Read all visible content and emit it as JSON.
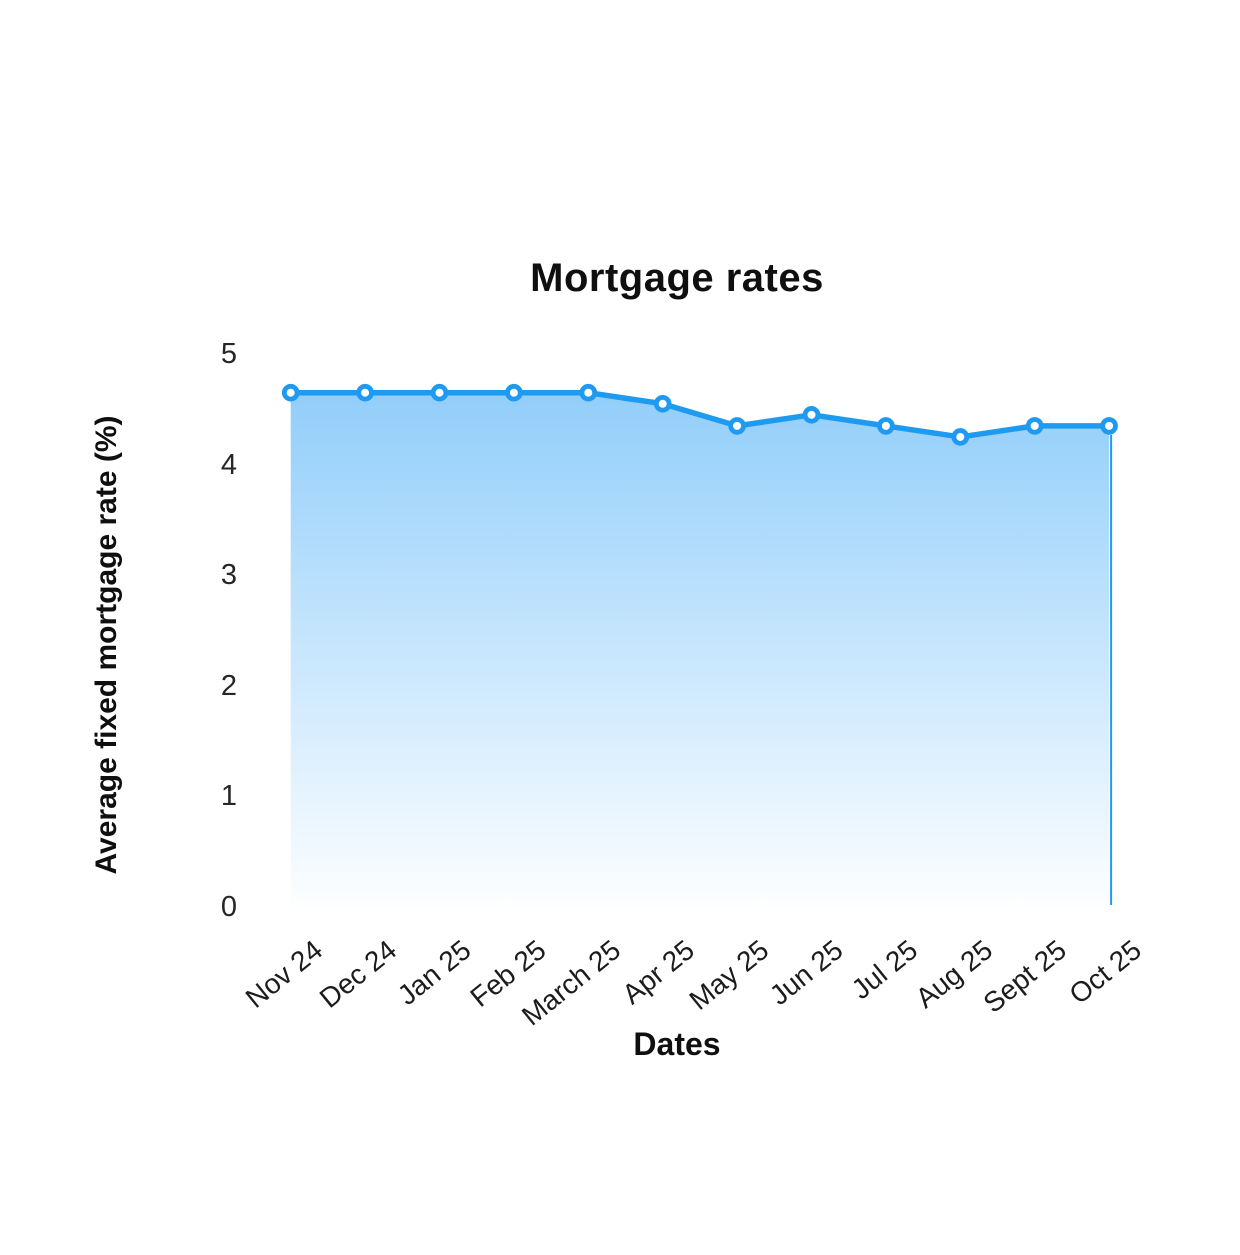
{
  "page": {
    "background": "#ffffff"
  },
  "chart_data": {
    "type": "area",
    "title": "Mortgage rates",
    "xlabel": "Dates",
    "ylabel": "Average fixed mortgage rate (%)",
    "categories": [
      "Nov 24",
      "Dec 24",
      "Jan 25",
      "Feb 25",
      "March 25",
      "Apr 25",
      "May 25",
      "Jun 25",
      "Jul 25",
      "Aug 25",
      "Sept 25",
      "Oct 25"
    ],
    "values": [
      4.65,
      4.65,
      4.65,
      4.65,
      4.65,
      4.55,
      4.35,
      4.45,
      4.35,
      4.25,
      4.35,
      4.35
    ],
    "ylim": [
      0,
      5
    ],
    "y_ticks": [
      0,
      1,
      2,
      3,
      4,
      5
    ],
    "grid": false,
    "legend": false,
    "marker": "circle-open",
    "colors": {
      "line": "#1e9bf0",
      "marker_fill": "#ffffff",
      "area_top": "#92cefa",
      "area_bottom": "#fdfeff",
      "title_text": "#0f0f0f",
      "tick_text": "#262626"
    }
  }
}
